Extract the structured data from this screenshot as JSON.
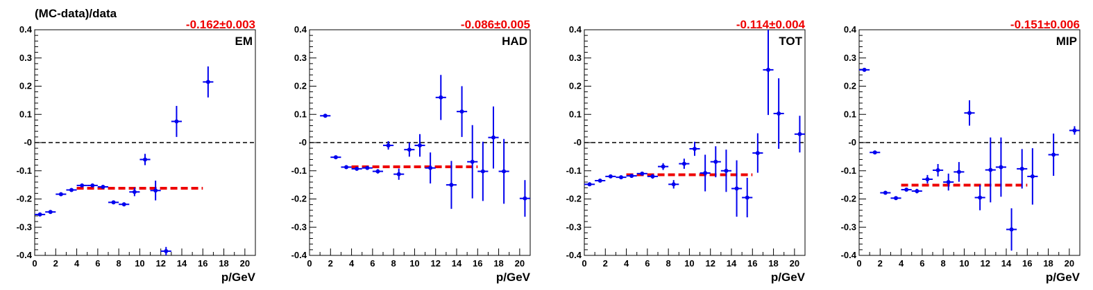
{
  "figure_title": "(MC-data)/data",
  "colors": {
    "points": "#0000ee",
    "fit": "#ee0000",
    "reference": "#000000",
    "fit_text": "#ee0000"
  },
  "chart_data": [
    {
      "type": "scatter",
      "name": "EM",
      "fit_label": "-0.162±0.003",
      "xlabel": "p/GeV",
      "ylabel": "",
      "xlim": [
        0,
        21
      ],
      "ylim": [
        -0.4,
        0.4
      ],
      "xticks": [
        0,
        2,
        4,
        6,
        8,
        10,
        12,
        14,
        16,
        18,
        20
      ],
      "yticks": [
        -0.4,
        -0.3,
        -0.2,
        -0.1,
        0,
        0.1,
        0.2,
        0.3,
        0.4
      ],
      "ytick_labels": [
        "-0.4",
        "-0.3",
        "-0.2",
        "-0.1",
        "-0",
        "0.1",
        "0.2",
        "0.3",
        "0.4"
      ],
      "reference_line": 0,
      "fit": {
        "x_range": [
          4,
          16
        ],
        "value": -0.162
      },
      "points": [
        {
          "x": 0.5,
          "y": -0.255,
          "err": 0.004
        },
        {
          "x": 1.5,
          "y": -0.246,
          "err": 0.004
        },
        {
          "x": 2.5,
          "y": -0.183,
          "err": 0.004
        },
        {
          "x": 3.5,
          "y": -0.168,
          "err": 0.004
        },
        {
          "x": 4.5,
          "y": -0.152,
          "err": 0.004
        },
        {
          "x": 5.5,
          "y": -0.152,
          "err": 0.004
        },
        {
          "x": 6.5,
          "y": -0.157,
          "err": 0.005
        },
        {
          "x": 7.5,
          "y": -0.212,
          "err": 0.006
        },
        {
          "x": 8.5,
          "y": -0.219,
          "err": 0.007
        },
        {
          "x": 9.5,
          "y": -0.175,
          "err": 0.015
        },
        {
          "x": 10.5,
          "y": -0.06,
          "err": 0.02
        },
        {
          "x": 11.5,
          "y": -0.17,
          "err": 0.035
        },
        {
          "x": 12.5,
          "y": -0.385,
          "err": 0.015
        },
        {
          "x": 13.5,
          "y": 0.075,
          "err": 0.055
        },
        {
          "x": 16.5,
          "y": 0.215,
          "err": 0.055
        }
      ]
    },
    {
      "type": "scatter",
      "name": "HAD",
      "fit_label": "-0.086±0.005",
      "xlabel": "p/GeV",
      "ylabel": "",
      "xlim": [
        0,
        21
      ],
      "ylim": [
        -0.4,
        0.4
      ],
      "xticks": [
        0,
        2,
        4,
        6,
        8,
        10,
        12,
        14,
        16,
        18,
        20
      ],
      "yticks": [
        -0.4,
        -0.3,
        -0.2,
        -0.1,
        0,
        0.1,
        0.2,
        0.3,
        0.4
      ],
      "ytick_labels": [
        "-0.4",
        "-0.3",
        "-0.2",
        "-0.1",
        "-0",
        "0.1",
        "0.2",
        "0.3",
        "0.4"
      ],
      "reference_line": 0,
      "fit": {
        "x_range": [
          4,
          16
        ],
        "value": -0.086
      },
      "points": [
        {
          "x": 1.5,
          "y": 0.095,
          "err": 0.004
        },
        {
          "x": 2.5,
          "y": -0.052,
          "err": 0.004
        },
        {
          "x": 3.5,
          "y": -0.087,
          "err": 0.004
        },
        {
          "x": 4.5,
          "y": -0.093,
          "err": 0.005
        },
        {
          "x": 5.5,
          "y": -0.09,
          "err": 0.006
        },
        {
          "x": 6.5,
          "y": -0.102,
          "err": 0.008
        },
        {
          "x": 7.5,
          "y": -0.01,
          "err": 0.015
        },
        {
          "x": 8.5,
          "y": -0.112,
          "err": 0.02
        },
        {
          "x": 9.5,
          "y": -0.025,
          "err": 0.025
        },
        {
          "x": 10.5,
          "y": -0.01,
          "err": 0.04
        },
        {
          "x": 11.5,
          "y": -0.09,
          "err": 0.055
        },
        {
          "x": 12.5,
          "y": 0.16,
          "err": 0.08
        },
        {
          "x": 13.5,
          "y": -0.15,
          "err": 0.085
        },
        {
          "x": 14.5,
          "y": 0.11,
          "err": 0.09
        },
        {
          "x": 15.5,
          "y": -0.068,
          "err": 0.13
        },
        {
          "x": 16.5,
          "y": -0.102,
          "err": 0.105
        },
        {
          "x": 17.5,
          "y": 0.018,
          "err": 0.11
        },
        {
          "x": 18.5,
          "y": -0.102,
          "err": 0.115
        },
        {
          "x": 20.5,
          "y": -0.198,
          "err": 0.065
        }
      ]
    },
    {
      "type": "scatter",
      "name": "TOT",
      "fit_label": "-0.114±0.004",
      "xlabel": "p/GeV",
      "ylabel": "",
      "xlim": [
        0,
        21
      ],
      "ylim": [
        -0.4,
        0.4
      ],
      "xticks": [
        0,
        2,
        4,
        6,
        8,
        10,
        12,
        14,
        16,
        18,
        20
      ],
      "yticks": [
        -0.4,
        -0.3,
        -0.2,
        -0.1,
        0,
        0.1,
        0.2,
        0.3,
        0.4
      ],
      "ytick_labels": [
        "-0.4",
        "-0.3",
        "-0.2",
        "-0.1",
        "-0",
        "0.1",
        "0.2",
        "0.3",
        "0.4"
      ],
      "reference_line": 0,
      "fit": {
        "x_range": [
          4,
          16
        ],
        "value": -0.114
      },
      "points": [
        {
          "x": 0.5,
          "y": -0.148,
          "err": 0.004
        },
        {
          "x": 1.5,
          "y": -0.135,
          "err": 0.004
        },
        {
          "x": 2.5,
          "y": -0.12,
          "err": 0.004
        },
        {
          "x": 3.5,
          "y": -0.123,
          "err": 0.004
        },
        {
          "x": 4.5,
          "y": -0.118,
          "err": 0.005
        },
        {
          "x": 5.5,
          "y": -0.11,
          "err": 0.006
        },
        {
          "x": 6.5,
          "y": -0.12,
          "err": 0.008
        },
        {
          "x": 7.5,
          "y": -0.085,
          "err": 0.012
        },
        {
          "x": 8.5,
          "y": -0.148,
          "err": 0.015
        },
        {
          "x": 9.5,
          "y": -0.075,
          "err": 0.018
        },
        {
          "x": 10.5,
          "y": -0.022,
          "err": 0.025
        },
        {
          "x": 11.5,
          "y": -0.108,
          "err": 0.065
        },
        {
          "x": 12.5,
          "y": -0.068,
          "err": 0.055
        },
        {
          "x": 13.5,
          "y": -0.1,
          "err": 0.075
        },
        {
          "x": 14.5,
          "y": -0.163,
          "err": 0.1
        },
        {
          "x": 15.5,
          "y": -0.195,
          "err": 0.07
        },
        {
          "x": 16.5,
          "y": -0.037,
          "err": 0.07
        },
        {
          "x": 17.5,
          "y": 0.258,
          "err": 0.16
        },
        {
          "x": 18.5,
          "y": 0.103,
          "err": 0.125
        },
        {
          "x": 20.5,
          "y": 0.03,
          "err": 0.065
        }
      ]
    },
    {
      "type": "scatter",
      "name": "MIP",
      "fit_label": "-0.151±0.006",
      "xlabel": "p/GeV",
      "ylabel": "",
      "xlim": [
        0,
        21
      ],
      "ylim": [
        -0.4,
        0.4
      ],
      "xticks": [
        0,
        2,
        4,
        6,
        8,
        10,
        12,
        14,
        16,
        18,
        20
      ],
      "yticks": [
        -0.4,
        -0.3,
        -0.2,
        -0.1,
        0,
        0.1,
        0.2,
        0.3,
        0.4
      ],
      "ytick_labels": [
        "-0.4",
        "-0.3",
        "-0.2",
        "-0.1",
        "-0",
        "0.1",
        "0.2",
        "0.3",
        "0.4"
      ],
      "reference_line": 0,
      "fit": {
        "x_range": [
          4,
          16
        ],
        "value": -0.151
      },
      "points": [
        {
          "x": 0.5,
          "y": 0.258,
          "err": 0.004
        },
        {
          "x": 1.5,
          "y": -0.035,
          "err": 0.004
        },
        {
          "x": 2.5,
          "y": -0.178,
          "err": 0.004
        },
        {
          "x": 3.5,
          "y": -0.197,
          "err": 0.004
        },
        {
          "x": 4.5,
          "y": -0.167,
          "err": 0.006
        },
        {
          "x": 5.5,
          "y": -0.172,
          "err": 0.008
        },
        {
          "x": 6.5,
          "y": -0.13,
          "err": 0.015
        },
        {
          "x": 7.5,
          "y": -0.098,
          "err": 0.022
        },
        {
          "x": 8.5,
          "y": -0.14,
          "err": 0.03
        },
        {
          "x": 9.5,
          "y": -0.104,
          "err": 0.035
        },
        {
          "x": 10.5,
          "y": 0.105,
          "err": 0.045
        },
        {
          "x": 11.5,
          "y": -0.195,
          "err": 0.045
        },
        {
          "x": 12.5,
          "y": -0.097,
          "err": 0.115
        },
        {
          "x": 13.5,
          "y": -0.087,
          "err": 0.105
        },
        {
          "x": 14.5,
          "y": -0.308,
          "err": 0.075
        },
        {
          "x": 15.5,
          "y": -0.093,
          "err": 0.07
        },
        {
          "x": 16.5,
          "y": -0.12,
          "err": 0.1
        },
        {
          "x": 18.5,
          "y": -0.043,
          "err": 0.075
        },
        {
          "x": 20.5,
          "y": 0.043,
          "err": 0.015
        }
      ]
    }
  ]
}
